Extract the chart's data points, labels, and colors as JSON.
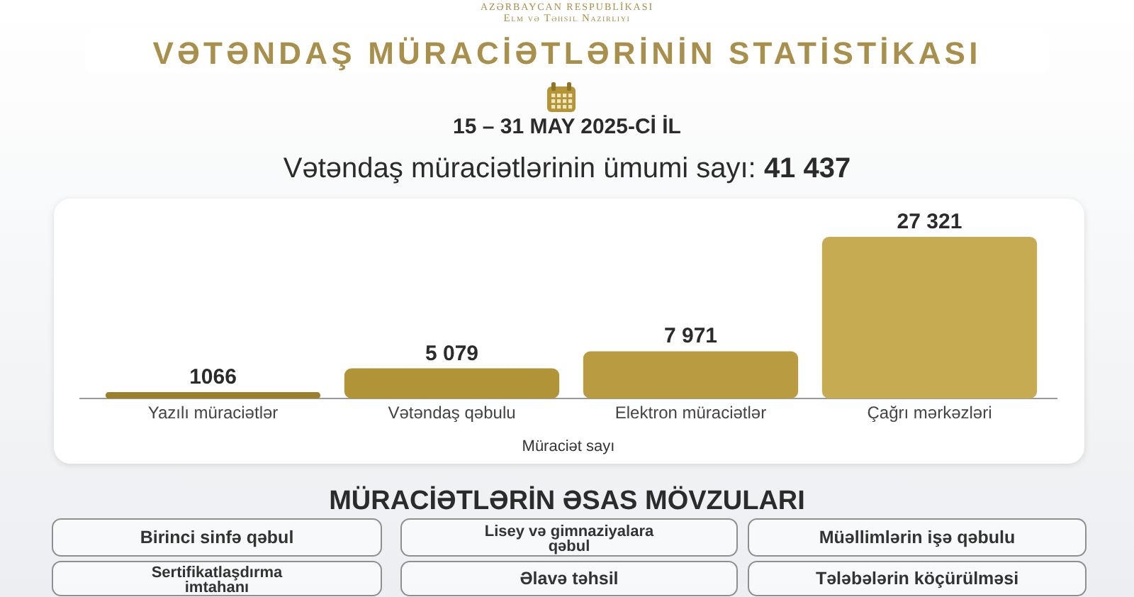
{
  "chart_data": {
    "type": "bar",
    "title": "VƏTƏNDAŞ MÜRACİƏTLƏRİNİN STATİSTİKASI",
    "subtitle": "15 – 31 MAY 2025-Cİ İL",
    "categories": [
      "Yazılı müraciətlər",
      "Vətəndaş qəbulu",
      "Elektron müraciətlər",
      "Çağrı mərkəzləri"
    ],
    "values": [
      1066,
      5079,
      7971,
      27321
    ],
    "value_labels": [
      "1066",
      "5 079",
      "7 971",
      "27 321"
    ],
    "colors": [
      "#9c7f2c",
      "#b29438",
      "#b99c42",
      "#c7ab52"
    ],
    "xlabel": "Müraciət sayı",
    "annotations": [
      "AZƏRBAYCAN RESPUBLİKASI",
      "Elm və Təhsil Nazirliyi",
      "Vətəndaş müraciətlərinin ümumi sayı: 41 437",
      "MÜRACİƏTLƏRİN ƏSAS MÖVZULARI",
      "Birinci sinfə qəbul",
      "Lisey və gimnaziyalara qəbul",
      "Müəllimlərin işə qəbulu",
      "Sertifikatlaşdırma imtahanı",
      "Əlavə təhsil",
      "Tələbələrin köçürülməsi"
    ]
  }
}
